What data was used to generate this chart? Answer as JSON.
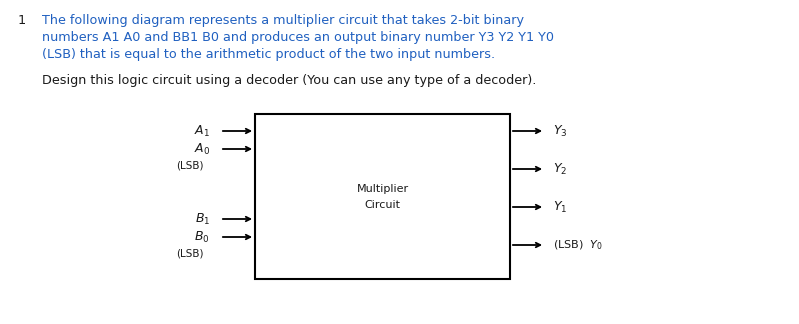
{
  "bg_color": "#ffffff",
  "fig_width": 7.99,
  "fig_height": 3.24,
  "dpi": 100,
  "text_color_black": "#1a1a1a",
  "text_color_blue": "#2060c0",
  "text_color_dark": "#1a1a1a",
  "number": "1",
  "para1_line1": "The following diagram represents a multiplier circuit that takes 2-bit binary",
  "para1_line2": "numbers A1 A0 and BB1 B0 and produces an output binary number Y3 Y2 Y1 Y0",
  "para1_line3": "(LSB) that is equal to the arithmetic product of the two input numbers.",
  "para2": "Design this logic circuit using a decoder (You can use any type of a decoder).",
  "box_label1": "Multiplier",
  "box_label2": "Circuit",
  "font_size_text": 9.2,
  "font_size_diagram": 8.5,
  "font_size_label": 8.5
}
